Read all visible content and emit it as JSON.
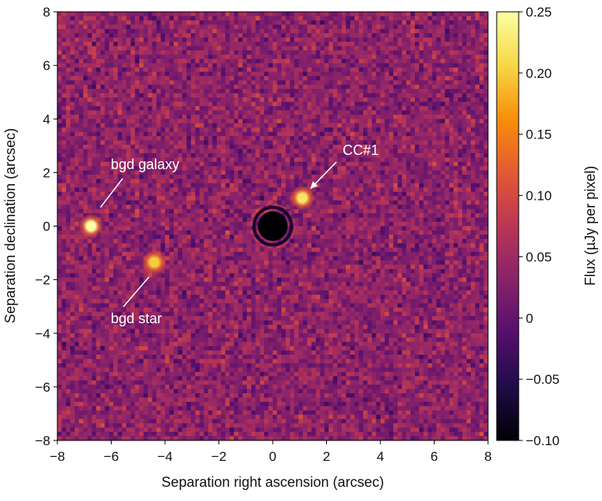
{
  "chart_data": {
    "type": "heatmap",
    "xlabel": "Separation right ascension (arcsec)",
    "ylabel": "Separation declination (arcsec)",
    "xlim": [
      -8,
      8
    ],
    "ylim": [
      -8,
      8
    ],
    "x_ticks": [
      "−8",
      "−6",
      "−4",
      "−2",
      "0",
      "2",
      "4",
      "6",
      "8"
    ],
    "y_ticks": [
      "8",
      "6",
      "4",
      "2",
      "0",
      "−2",
      "−4",
      "−6",
      "−8"
    ],
    "x_tick_values": [
      -8,
      -6,
      -4,
      -2,
      0,
      2,
      4,
      6,
      8
    ],
    "y_tick_values": [
      8,
      6,
      4,
      2,
      0,
      -2,
      -4,
      -6,
      -8
    ],
    "colorbar": {
      "label": "Flux (µJy per pixel)",
      "range": [
        -0.1,
        0.25
      ],
      "tick_values": [
        0.25,
        0.2,
        0.15,
        0.1,
        0.05,
        0,
        -0.05,
        -0.1
      ],
      "tick_labels": [
        "0.25",
        "0.20",
        "0.15",
        "0.10",
        "0.05",
        "0",
        "−0.05",
        "−0.10"
      ],
      "colors": [
        "#000004",
        "#1f0c48",
        "#550f6d",
        "#88226a",
        "#ba3655",
        "#e35933",
        "#f98e09",
        "#f6d746",
        "#fcffa4"
      ]
    },
    "background_level": 0.035,
    "masked_core": {
      "x": 0,
      "y": 0,
      "radius": 0.55
    },
    "sources": [
      {
        "name": "CC#1",
        "x": 1.1,
        "y": 1.05,
        "peak": 0.22
      },
      {
        "name": "bgd galaxy",
        "x": -6.75,
        "y": 0.0,
        "peak": 0.25
      },
      {
        "name": "bgd star",
        "x": -4.4,
        "y": -1.35,
        "peak": 0.2
      }
    ],
    "annotations": [
      {
        "text": "CC#1",
        "target_x": 1.4,
        "target_y": 1.4,
        "arrow": true
      },
      {
        "text": "bgd galaxy",
        "target_x": -6.4,
        "target_y": 0.7,
        "arrow": false
      },
      {
        "text": "bgd star",
        "target_x": -4.6,
        "target_y": -1.9,
        "arrow": false
      }
    ]
  }
}
